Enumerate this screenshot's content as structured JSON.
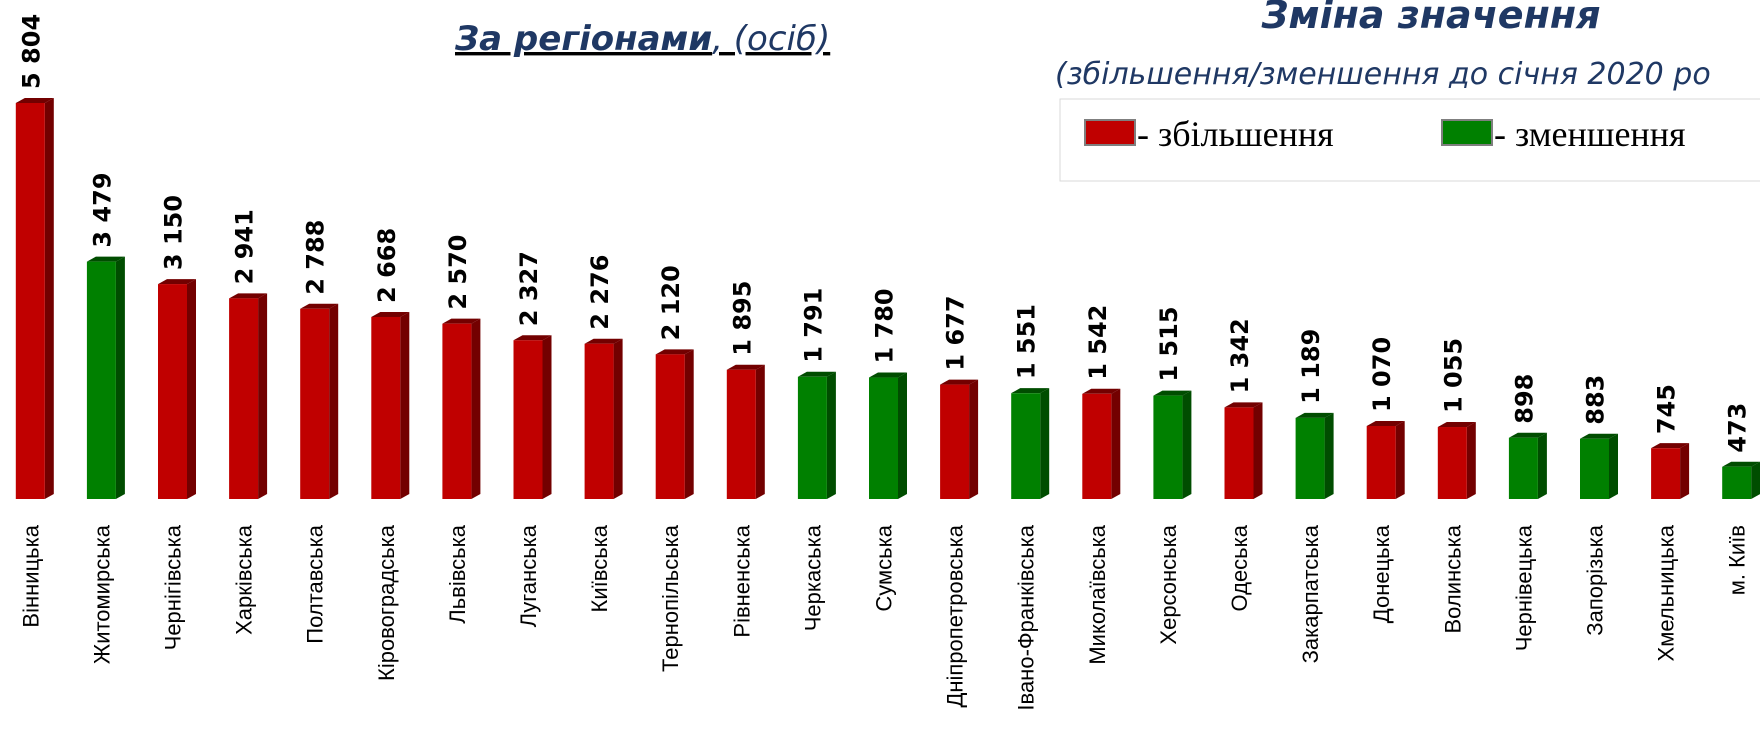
{
  "chart_data": {
    "type": "bar",
    "title": "За  регіонами",
    "title_suffix": ", (осіб)",
    "legend_title": "Зміна значення",
    "legend_subtitle": "(збільшення/зменшення до січня 2020 ро",
    "series": [
      {
        "name": "- збільшення",
        "color": "#c00000"
      },
      {
        "name": "- зменшення",
        "color": "#008000"
      }
    ],
    "categories": [
      "Вінницька",
      "Житомирська",
      "Чернігівська",
      "Харківська",
      "Полтавська",
      "Кіровоградська",
      "Львівська",
      "Луганська",
      "Київська",
      "Тернопільська",
      "Рівненська",
      "Черкаська",
      "Сумська",
      "Дніпропетровська",
      "Івано-Франківська",
      "Миколаївська",
      "Херсонська",
      "Одеська",
      "Закарпатська",
      "Донецька",
      "Волинська",
      "Чернівецька",
      "Запорізька",
      "Хмельницька",
      "м. Київ"
    ],
    "values": [
      5804,
      3479,
      3150,
      2941,
      2788,
      2668,
      2570,
      2327,
      2276,
      2120,
      1895,
      1791,
      1780,
      1677,
      1551,
      1542,
      1515,
      1342,
      1189,
      1070,
      1055,
      898,
      883,
      745,
      473
    ],
    "value_labels": [
      "5 804",
      "3 479",
      "3 150",
      "2 941",
      "2 788",
      "2 668",
      "2 570",
      "2 327",
      "2 276",
      "2 120",
      "1 895",
      "1 791",
      "1 780",
      "1 677",
      "1 551",
      "1 542",
      "1 515",
      "1 342",
      "1 189",
      "1 070",
      "1 055",
      "898",
      "883",
      "745",
      "473"
    ],
    "colors": [
      "#c00000",
      "#008000",
      "#c00000",
      "#c00000",
      "#c00000",
      "#c00000",
      "#c00000",
      "#c00000",
      "#c00000",
      "#c00000",
      "#c00000",
      "#008000",
      "#008000",
      "#c00000",
      "#008000",
      "#c00000",
      "#008000",
      "#c00000",
      "#008000",
      "#c00000",
      "#c00000",
      "#008000",
      "#008000",
      "#c00000",
      "#008000"
    ]
  }
}
